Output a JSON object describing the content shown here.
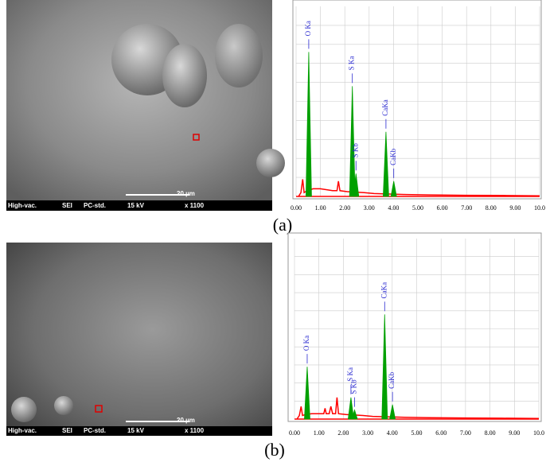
{
  "figure": {
    "panels": [
      {
        "caption": "(a)",
        "image_labels": [
          "High-vac.",
          "SEI",
          "PC-std.",
          "15 kV",
          "x 1100"
        ],
        "scale_bar": "20 µm"
      },
      {
        "caption": "(b)",
        "image_labels": [
          "High-vac.",
          "SEI",
          "PC-std.",
          "15 kV",
          "x 1100"
        ],
        "scale_bar": "20 µm"
      }
    ]
  },
  "chart_data": [
    {
      "type": "spectrum",
      "color": "#ff0000",
      "peak_color": "#00a000",
      "label_color": "#2a2ad0",
      "x": [
        0.1,
        0.2,
        0.27,
        0.33,
        0.45,
        0.7,
        1.0,
        1.5,
        1.68,
        1.74,
        1.8,
        2.1,
        2.8,
        3.2,
        4.5,
        5.5,
        7,
        8.5,
        10
      ],
      "values": [
        0,
        2,
        9,
        2,
        3,
        4,
        4,
        3,
        3,
        8,
        3,
        2.5,
        2,
        1.5,
        1,
        0.8,
        0.6,
        0.5,
        0.3
      ],
      "peaks": [
        {
          "name": "O Ka",
          "x": 0.52,
          "value": 76
        },
        {
          "name": "S Ka",
          "x": 2.31,
          "value": 58
        },
        {
          "name": "S Kb",
          "x": 2.46,
          "value": 12
        },
        {
          "name": "CaKa",
          "x": 3.69,
          "value": 34
        },
        {
          "name": "CaKb",
          "x": 4.01,
          "value": 8
        }
      ],
      "xlim": [
        0,
        10
      ],
      "ylim": [
        0,
        100
      ],
      "xticks": [
        {
          "value": 0,
          "label": "0.00"
        },
        {
          "value": 1,
          "label": "1.00"
        },
        {
          "value": 2,
          "label": "2.00"
        },
        {
          "value": 3,
          "label": "3.00"
        },
        {
          "value": 4,
          "label": "4.00"
        },
        {
          "value": 5,
          "label": "5.00"
        },
        {
          "value": 6,
          "label": "6.00"
        },
        {
          "value": 7,
          "label": "7.00"
        },
        {
          "value": 8,
          "label": "8.00"
        },
        {
          "value": 9,
          "label": "9.00"
        },
        {
          "value": 10,
          "label": "10.0"
        }
      ],
      "grid": true
    },
    {
      "type": "spectrum",
      "color": "#ff0000",
      "peak_color": "#00a000",
      "label_color": "#2a2ad0",
      "x": [
        0.1,
        0.2,
        0.27,
        0.33,
        0.45,
        0.7,
        1.0,
        1.2,
        1.25,
        1.3,
        1.42,
        1.49,
        1.56,
        1.68,
        1.74,
        1.8,
        2.1,
        2.8,
        3.2,
        4.5,
        5.5,
        7,
        8.5,
        10
      ],
      "values": [
        0,
        2,
        7,
        2,
        2.5,
        3,
        3,
        3,
        6,
        3,
        3,
        7,
        3,
        3,
        12,
        3,
        2.5,
        2,
        1.5,
        1,
        0.8,
        0.6,
        0.5,
        0.3
      ],
      "peaks": [
        {
          "name": "O Ka",
          "x": 0.52,
          "value": 29
        },
        {
          "name": "S Ka",
          "x": 2.31,
          "value": 12
        },
        {
          "name": "S Kb",
          "x": 2.46,
          "value": 5
        },
        {
          "name": "CaKa",
          "x": 3.69,
          "value": 58
        },
        {
          "name": "CaKb",
          "x": 4.01,
          "value": 8
        }
      ],
      "xlim": [
        0,
        10
      ],
      "ylim": [
        0,
        100
      ],
      "xticks": [
        {
          "value": 0,
          "label": "0.00"
        },
        {
          "value": 1,
          "label": "1.00"
        },
        {
          "value": 2,
          "label": "2.00"
        },
        {
          "value": 3,
          "label": "3.00"
        },
        {
          "value": 4,
          "label": "4.00"
        },
        {
          "value": 5,
          "label": "5.00"
        },
        {
          "value": 6,
          "label": "6.00"
        },
        {
          "value": 7,
          "label": "7.00"
        },
        {
          "value": 8,
          "label": "8.00"
        },
        {
          "value": 9,
          "label": "9.00"
        },
        {
          "value": 10,
          "label": "10.0"
        }
      ],
      "grid": true
    }
  ]
}
